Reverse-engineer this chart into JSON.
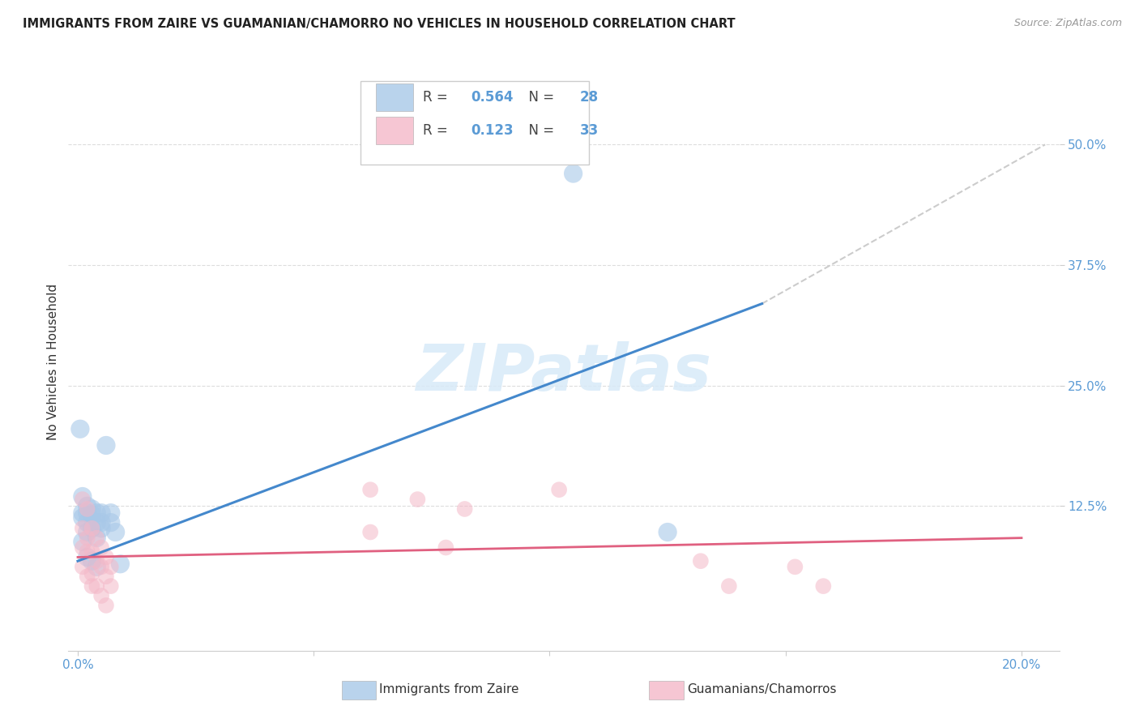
{
  "title": "IMMIGRANTS FROM ZAIRE VS GUAMANIAN/CHAMORRO NO VEHICLES IN HOUSEHOLD CORRELATION CHART",
  "source": "Source: ZipAtlas.com",
  "ylabel": "No Vehicles in Household",
  "legend1_R": "0.564",
  "legend1_N": "28",
  "legend2_R": "0.123",
  "legend2_N": "33",
  "blue_color": "#a8c8e8",
  "pink_color": "#f4b8c8",
  "blue_line_color": "#4488cc",
  "pink_line_color": "#e06080",
  "dashed_line_color": "#cccccc",
  "watermark": "ZIPatlas",
  "blue_scatter": [
    [
      0.0005,
      0.205
    ],
    [
      0.001,
      0.135
    ],
    [
      0.001,
      0.118
    ],
    [
      0.001,
      0.113
    ],
    [
      0.002,
      0.125
    ],
    [
      0.002,
      0.118
    ],
    [
      0.002,
      0.108
    ],
    [
      0.002,
      0.098
    ],
    [
      0.003,
      0.122
    ],
    [
      0.003,
      0.116
    ],
    [
      0.003,
      0.102
    ],
    [
      0.004,
      0.118
    ],
    [
      0.004,
      0.108
    ],
    [
      0.004,
      0.092
    ],
    [
      0.005,
      0.118
    ],
    [
      0.005,
      0.108
    ],
    [
      0.005,
      0.102
    ],
    [
      0.006,
      0.188
    ],
    [
      0.007,
      0.118
    ],
    [
      0.007,
      0.108
    ],
    [
      0.001,
      0.088
    ],
    [
      0.002,
      0.072
    ],
    [
      0.003,
      0.068
    ],
    [
      0.004,
      0.062
    ],
    [
      0.008,
      0.098
    ],
    [
      0.009,
      0.065
    ],
    [
      0.105,
      0.47
    ],
    [
      0.125,
      0.098
    ]
  ],
  "pink_scatter": [
    [
      0.001,
      0.132
    ],
    [
      0.001,
      0.102
    ],
    [
      0.001,
      0.082
    ],
    [
      0.001,
      0.062
    ],
    [
      0.002,
      0.122
    ],
    [
      0.002,
      0.092
    ],
    [
      0.002,
      0.078
    ],
    [
      0.002,
      0.052
    ],
    [
      0.003,
      0.102
    ],
    [
      0.003,
      0.078
    ],
    [
      0.003,
      0.055
    ],
    [
      0.003,
      0.042
    ],
    [
      0.004,
      0.092
    ],
    [
      0.004,
      0.068
    ],
    [
      0.004,
      0.042
    ],
    [
      0.005,
      0.082
    ],
    [
      0.005,
      0.062
    ],
    [
      0.005,
      0.032
    ],
    [
      0.006,
      0.072
    ],
    [
      0.006,
      0.052
    ],
    [
      0.006,
      0.022
    ],
    [
      0.007,
      0.062
    ],
    [
      0.007,
      0.042
    ],
    [
      0.062,
      0.142
    ],
    [
      0.062,
      0.098
    ],
    [
      0.072,
      0.132
    ],
    [
      0.078,
      0.082
    ],
    [
      0.082,
      0.122
    ],
    [
      0.102,
      0.142
    ],
    [
      0.132,
      0.068
    ],
    [
      0.138,
      0.042
    ],
    [
      0.152,
      0.062
    ],
    [
      0.158,
      0.042
    ]
  ],
  "blue_line_x": [
    0.0,
    0.145
  ],
  "blue_line_y": [
    0.068,
    0.335
  ],
  "pink_line_x": [
    0.0,
    0.2
  ],
  "pink_line_y": [
    0.072,
    0.092
  ],
  "dashed_line_x": [
    0.145,
    0.205
  ],
  "dashed_line_y": [
    0.335,
    0.5
  ],
  "xlim": [
    -0.002,
    0.208
  ],
  "ylim": [
    -0.025,
    0.575
  ],
  "xticks": [
    0.0,
    0.05,
    0.1,
    0.15,
    0.2
  ],
  "xticklabels": [
    "0.0%",
    "",
    "",
    "",
    "20.0%"
  ],
  "yticks": [
    0.125,
    0.25,
    0.375,
    0.5
  ],
  "yticklabels": [
    "12.5%",
    "25.0%",
    "37.5%",
    "50.0%"
  ],
  "background_color": "#ffffff",
  "grid_color": "#dddddd",
  "tick_color": "#5b9bd5",
  "label_color": "#333333"
}
